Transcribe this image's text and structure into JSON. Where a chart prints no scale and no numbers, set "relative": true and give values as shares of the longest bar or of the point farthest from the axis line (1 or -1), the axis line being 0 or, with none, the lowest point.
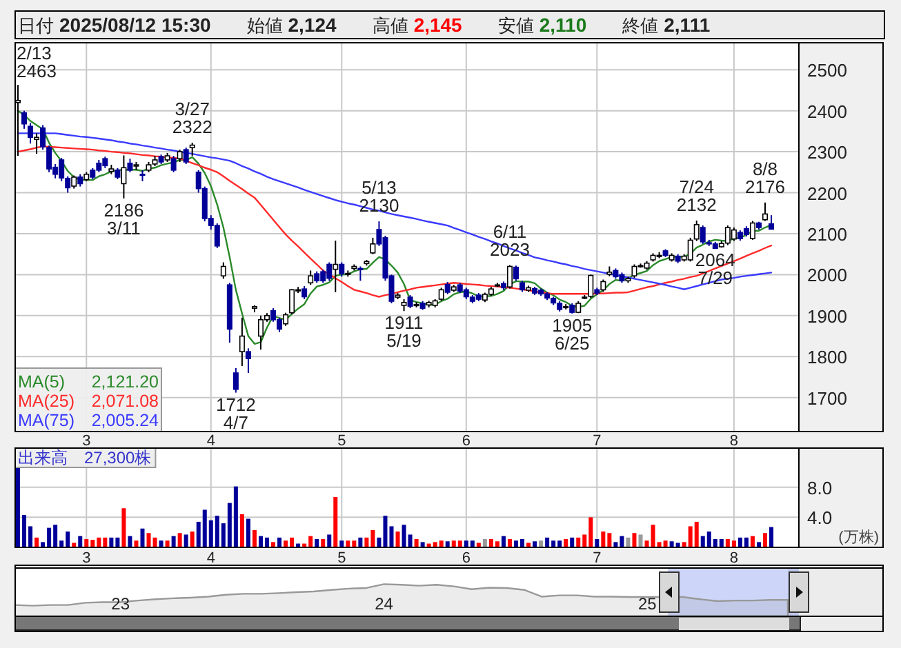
{
  "chart_data": [
    {
      "type": "candlestick",
      "annotations": [
        "日付",
        "2025/08/12 15:30",
        "始値",
        "2,124",
        "高値",
        "2,145",
        "安値",
        "2,110",
        "終値",
        "2,111",
        {
          "text": "2/13\n2463"
        },
        {
          "text": "2186\n3/11",
          "y": 2186
        },
        {
          "text": "3/27\n2322",
          "y": 2322
        },
        {
          "text": "1712\n4/7",
          "y": 1712
        },
        {
          "text": "5/13\n2130",
          "y": 2130
        },
        {
          "text": "1911\n5/19",
          "y": 1911
        },
        {
          "text": "6/11\n2023",
          "y": 2023
        },
        {
          "text": "1905\n6/25",
          "y": 1905
        },
        {
          "text": "7/24\n2132",
          "y": 2132
        },
        {
          "text": "2064\n7/29",
          "y": 2064
        },
        {
          "text": "8/8\n2176",
          "y": 2176
        }
      ],
      "categories": [
        null,
        null,
        null,
        null,
        null,
        null,
        null,
        null,
        null,
        null,
        null,
        "3",
        null,
        null,
        null,
        null,
        null,
        null,
        null,
        null,
        null,
        null,
        null,
        null,
        null,
        null,
        null,
        null,
        null,
        null,
        null,
        "4",
        null,
        null,
        null,
        null,
        null,
        null,
        null,
        null,
        null,
        null,
        null,
        null,
        null,
        null,
        null,
        null,
        null,
        null,
        null,
        null,
        "5",
        null,
        null,
        null,
        null,
        null,
        null,
        null,
        null,
        null,
        null,
        null,
        null,
        null,
        null,
        null,
        null,
        null,
        null,
        null,
        "6",
        null,
        null,
        null,
        null,
        null,
        null,
        null,
        null,
        null,
        null,
        null,
        null,
        null,
        null,
        null,
        null,
        null,
        null,
        null,
        null,
        "7",
        null,
        null,
        null,
        null,
        null,
        null,
        null,
        null,
        null,
        null,
        null,
        null,
        null,
        null,
        null,
        null,
        null,
        null,
        null,
        null,
        null,
        "8",
        null,
        null,
        null,
        null,
        null,
        null
      ],
      "ohlc": [
        [
          2420,
          2463,
          2290,
          2425
        ],
        [
          2395,
          2400,
          2356,
          2368
        ],
        [
          2362,
          2370,
          2320,
          2335
        ],
        [
          2330,
          2345,
          2295,
          2335
        ],
        [
          2358,
          2365,
          2305,
          2312
        ],
        [
          2310,
          2315,
          2250,
          2258
        ],
        [
          2262,
          2270,
          2235,
          2245
        ],
        [
          2280,
          2285,
          2228,
          2236
        ],
        [
          2235,
          2240,
          2200,
          2212
        ],
        [
          2216,
          2242,
          2210,
          2238
        ],
        [
          2238,
          2245,
          2215,
          2222
        ],
        [
          2232,
          2250,
          2228,
          2245
        ],
        [
          2255,
          2260,
          2233,
          2238
        ],
        [
          2272,
          2280,
          2250,
          2255
        ],
        [
          2283,
          2288,
          2260,
          2266
        ],
        [
          2252,
          2268,
          2245,
          2258
        ],
        [
          2255,
          2260,
          2233,
          2238
        ],
        [
          2222,
          2291,
          2186,
          2261
        ],
        [
          2272,
          2283,
          2250,
          2255
        ],
        [
          2265,
          2275,
          2255,
          2268
        ],
        [
          2245,
          2255,
          2228,
          2244
        ],
        [
          2255,
          2275,
          2250,
          2268
        ],
        [
          2270,
          2290,
          2265,
          2280
        ],
        [
          2288,
          2293,
          2270,
          2275
        ],
        [
          2280,
          2297,
          2275,
          2290
        ],
        [
          2283,
          2290,
          2250,
          2255
        ],
        [
          2283,
          2305,
          2275,
          2300
        ],
        [
          2305,
          2310,
          2270,
          2275
        ],
        [
          2310,
          2322,
          2290,
          2316
        ],
        [
          2250,
          2255,
          2200,
          2210
        ],
        [
          2210,
          2215,
          2130,
          2137
        ],
        [
          2137,
          2145,
          2110,
          2120
        ],
        [
          2120,
          2125,
          2065,
          2070
        ],
        [
          1997,
          2030,
          1990,
          2020
        ],
        [
          1975,
          1980,
          1834,
          1867
        ],
        [
          1760,
          1772,
          1712,
          1720
        ],
        [
          1812,
          1895,
          1777,
          1850
        ],
        [
          1812,
          1820,
          1760,
          1795
        ],
        [
          1918,
          1925,
          1908,
          1922
        ],
        [
          1850,
          1900,
          1817,
          1890
        ],
        [
          1890,
          1906,
          1885,
          1900
        ],
        [
          1912,
          1918,
          1885,
          1890
        ],
        [
          1890,
          1895,
          1860,
          1867
        ],
        [
          1880,
          1907,
          1875,
          1902
        ],
        [
          1907,
          1965,
          1903,
          1963
        ],
        [
          1963,
          1970,
          1955,
          1963
        ],
        [
          1965,
          1972,
          1940,
          1946
        ],
        [
          1980,
          2010,
          1975,
          1997
        ],
        [
          2002,
          2008,
          1980,
          1985
        ],
        [
          2007,
          2012,
          1980,
          1985
        ],
        [
          2025,
          2030,
          1985,
          1991
        ],
        [
          2013,
          2083,
          1957,
          2025
        ],
        [
          2025,
          2030,
          1995,
          2002
        ],
        [
          2002,
          2010,
          1995,
          2003
        ],
        [
          2015,
          2025,
          2010,
          2020
        ],
        [
          2015,
          2020,
          1985,
          2013
        ],
        [
          2027,
          2036,
          2022,
          2032
        ],
        [
          2053,
          2090,
          2050,
          2075
        ],
        [
          2110,
          2130,
          2070,
          2075
        ],
        [
          2090,
          2095,
          1985,
          1992
        ],
        [
          1997,
          2000,
          1930,
          1935
        ],
        [
          1945,
          1955,
          1940,
          1950
        ],
        [
          1925,
          1940,
          1911,
          1932
        ],
        [
          1945,
          1950,
          1918,
          1923
        ],
        [
          1927,
          1933,
          1920,
          1927
        ],
        [
          1930,
          1935,
          1914,
          1918
        ],
        [
          1926,
          1936,
          1920,
          1932
        ],
        [
          1925,
          1940,
          1920,
          1936
        ],
        [
          1940,
          1968,
          1936,
          1963
        ],
        [
          1976,
          1982,
          1952,
          1957
        ],
        [
          1962,
          1975,
          1958,
          1970
        ],
        [
          1975,
          1980,
          1955,
          1960
        ],
        [
          1963,
          1968,
          1940,
          1946
        ],
        [
          1945,
          1950,
          1930,
          1935
        ],
        [
          1950,
          1955,
          1935,
          1940
        ],
        [
          1938,
          1956,
          1933,
          1952
        ],
        [
          1952,
          1970,
          1948,
          1965
        ],
        [
          1975,
          1980,
          1970,
          1975
        ],
        [
          1978,
          1983,
          1962,
          1968
        ],
        [
          1970,
          2023,
          1966,
          2020
        ],
        [
          2018,
          2022,
          1985,
          1990
        ],
        [
          1980,
          1985,
          1958,
          1963
        ],
        [
          1962,
          1973,
          1958,
          1968
        ],
        [
          1966,
          1970,
          1950,
          1955
        ],
        [
          1962,
          1966,
          1948,
          1953
        ],
        [
          1953,
          1957,
          1938,
          1943
        ],
        [
          1942,
          1946,
          1926,
          1931
        ],
        [
          1930,
          1935,
          1910,
          1915
        ],
        [
          1922,
          1928,
          1915,
          1922
        ],
        [
          1925,
          1930,
          1905,
          1908
        ],
        [
          1908,
          1935,
          1906,
          1930
        ],
        [
          1945,
          1950,
          1940,
          1945
        ],
        [
          1947,
          2000,
          1943,
          1998
        ],
        [
          1963,
          1968,
          1950,
          1955
        ],
        [
          1963,
          1988,
          1958,
          1983
        ],
        [
          2001,
          2020,
          1996,
          2006
        ],
        [
          2010,
          2015,
          1990,
          1995
        ],
        [
          2000,
          2005,
          1980,
          1985
        ],
        [
          1985,
          1995,
          1980,
          1990
        ],
        [
          1997,
          2025,
          1992,
          2020
        ],
        [
          2022,
          2027,
          2017,
          2022
        ],
        [
          2016,
          2033,
          2012,
          2028
        ],
        [
          2036,
          2052,
          2032,
          2047
        ],
        [
          2047,
          2055,
          2040,
          2047
        ],
        [
          2058,
          2062,
          2043,
          2047
        ],
        [
          2036,
          2052,
          2032,
          2047
        ],
        [
          2045,
          2050,
          2028,
          2033
        ],
        [
          2036,
          2050,
          2032,
          2045
        ],
        [
          2036,
          2090,
          2032,
          2084
        ],
        [
          2087,
          2132,
          2082,
          2122
        ],
        [
          2115,
          2120,
          2075,
          2080
        ],
        [
          2078,
          2085,
          2070,
          2075
        ],
        [
          2075,
          2080,
          2064,
          2064
        ],
        [
          2068,
          2082,
          2066,
          2076
        ],
        [
          2077,
          2120,
          2072,
          2115
        ],
        [
          2087,
          2115,
          2082,
          2109
        ],
        [
          2103,
          2108,
          2083,
          2088
        ],
        [
          2112,
          2118,
          2093,
          2098
        ],
        [
          2088,
          2131,
          2085,
          2126
        ],
        [
          2126,
          2129,
          2110,
          2115
        ],
        [
          2134,
          2176,
          2131,
          2148
        ],
        [
          2124,
          2145,
          2110,
          2111
        ]
      ],
      "series": [
        {
          "type": "line",
          "name": "MA(5) 2,121.20",
          "color": "#2a8a2a",
          "values": [
            2400,
            2390,
            2375,
            2365,
            2355,
            2322,
            2297,
            2277,
            2253,
            2238,
            2231,
            2231,
            2231,
            2240,
            2245,
            2252,
            2255,
            2256,
            2256,
            2256,
            2253,
            2259,
            2261,
            2267,
            2271,
            2274,
            2280,
            2279,
            2287,
            2271,
            2248,
            2216,
            2171,
            2115,
            2043,
            1963,
            1905,
            1850,
            1831,
            1835,
            1871,
            1899,
            1894,
            1890,
            1904,
            1917,
            1928,
            1954,
            1971,
            1975,
            1981,
            1997,
            2000,
            2001,
            2008,
            2013,
            2014,
            2029,
            2043,
            2037,
            2022,
            2005,
            1977,
            1938,
            1933,
            1930,
            1926,
            1927,
            1935,
            1941,
            1952,
            1957,
            1959,
            1954,
            1947,
            1947,
            1948,
            1953,
            1960,
            1976,
            1984,
            1983,
            1983,
            1979,
            1966,
            1956,
            1950,
            1939,
            1933,
            1924,
            1921,
            1924,
            1941,
            1952,
            1962,
            1977,
            1987,
            1985,
            1992,
            1999,
            2004,
            2009,
            2023,
            2033,
            2038,
            2043,
            2044,
            2044,
            2051,
            2066,
            2073,
            2081,
            2085,
            2083,
            2082,
            2088,
            2090,
            2097,
            2107,
            2107,
            2115,
            2121.2
          ]
        },
        {
          "type": "line",
          "name": "MA(25) 2,071.08",
          "color": "#ff2a2a",
          "values": [
            2300,
            2303,
            2306,
            2310,
            2313,
            2312,
            2311,
            2310,
            2309,
            2308,
            2307,
            2306,
            2305,
            2303,
            2302,
            2300,
            2299,
            2297,
            2296,
            2294,
            2292,
            2291,
            2289,
            2288,
            2286,
            2285,
            2283,
            2278,
            2272,
            2267,
            2261,
            2256,
            2250,
            2240,
            2229,
            2219,
            2209,
            2198,
            2188,
            2170,
            2152,
            2134,
            2116,
            2098,
            2083,
            2069,
            2054,
            2039,
            2025,
            2010,
            2001,
            1991,
            1982,
            1972,
            1963,
            1959,
            1955,
            1950,
            1946,
            1950,
            1953,
            1957,
            1961,
            1964,
            1968,
            1970,
            1972,
            1974,
            1976,
            1978,
            1980,
            1979,
            1977,
            1976,
            1975,
            1973,
            1972,
            1971,
            1969,
            1968,
            1966,
            1964,
            1962,
            1959,
            1957,
            1955,
            1953,
            1953,
            1953,
            1953,
            1953,
            1953,
            1953,
            1954,
            1954,
            1955,
            1956,
            1956,
            1957,
            1961,
            1965,
            1969,
            1972,
            1976,
            1980,
            1983,
            1987,
            1990,
            1994,
            1997,
            2003,
            2009,
            2015,
            2021,
            2027,
            2033,
            2039,
            2046,
            2052,
            2058,
            2065,
            2071.1
          ]
        },
        {
          "type": "line",
          "name": "MA(75) 2,005.24",
          "color": "#3a3aff",
          "values": [
            2345,
            2345,
            2345,
            2345,
            2345,
            2345,
            2345,
            2343,
            2341,
            2339,
            2337,
            2336,
            2334,
            2332,
            2330,
            2328,
            2325,
            2323,
            2320,
            2318,
            2315,
            2313,
            2310,
            2308,
            2305,
            2303,
            2300,
            2297,
            2295,
            2292,
            2289,
            2286,
            2284,
            2281,
            2278,
            2272,
            2265,
            2259,
            2252,
            2246,
            2239,
            2233,
            2228,
            2223,
            2218,
            2213,
            2207,
            2202,
            2197,
            2192,
            2187,
            2182,
            2178,
            2174,
            2171,
            2167,
            2163,
            2159,
            2156,
            2152,
            2148,
            2145,
            2142,
            2139,
            2136,
            2132,
            2129,
            2126,
            2123,
            2120,
            2114,
            2109,
            2103,
            2098,
            2092,
            2087,
            2081,
            2076,
            2070,
            2064,
            2059,
            2053,
            2048,
            2042,
            2039,
            2035,
            2032,
            2028,
            2025,
            2021,
            2018,
            2014,
            2011,
            2008,
            2005,
            2002,
            1999,
            1996,
            1993,
            1990,
            1987,
            1984,
            1981,
            1978,
            1975,
            1971,
            1968,
            1964,
            1968,
            1972,
            1976,
            1980,
            1984,
            1988,
            1990,
            1992,
            1995,
            1997,
            1999,
            2001,
            2003,
            2005
          ]
        }
      ],
      "ylim": [
        1617,
        2566
      ],
      "yticks": [
        1700,
        1800,
        1900,
        2000,
        2100,
        2200,
        2300,
        2400,
        2500
      ],
      "grid": true,
      "legend": "bottom left"
    },
    {
      "type": "bar",
      "title": "出来高　27,300株",
      "ylabel": "(万株)",
      "categories": [
        null,
        null,
        null,
        null,
        null,
        null,
        null,
        null,
        null,
        null,
        null,
        "3",
        null,
        null,
        null,
        null,
        null,
        null,
        null,
        null,
        null,
        null,
        null,
        null,
        null,
        null,
        null,
        null,
        null,
        null,
        null,
        "4",
        null,
        null,
        null,
        null,
        null,
        null,
        null,
        null,
        null,
        null,
        null,
        null,
        null,
        null,
        null,
        null,
        null,
        null,
        null,
        null,
        "5",
        null,
        null,
        null,
        null,
        null,
        null,
        null,
        null,
        null,
        null,
        null,
        null,
        null,
        null,
        null,
        null,
        null,
        null,
        null,
        "6",
        null,
        null,
        null,
        null,
        null,
        null,
        null,
        null,
        null,
        null,
        null,
        null,
        null,
        null,
        null,
        null,
        null,
        null,
        null,
        null,
        "7",
        null,
        null,
        null,
        null,
        null,
        null,
        null,
        null,
        null,
        null,
        null,
        null,
        null,
        null,
        null,
        null,
        null,
        null,
        null,
        null,
        null,
        "8",
        null,
        null,
        null,
        null,
        null,
        null
      ],
      "values": [
        10.6,
        4.3,
        2.8,
        1.3,
        0.7,
        2.6,
        3.0,
        0.9,
        2.1,
        0.6,
        1.5,
        1.1,
        1.0,
        1.3,
        1.3,
        1.3,
        1.3,
        5.2,
        1.5,
        0.9,
        2.5,
        1.9,
        1.3,
        0.9,
        0.9,
        1.5,
        1.9,
        1.7,
        2.1,
        3.4,
        5.0,
        3.6,
        4.2,
        3.2,
        5.9,
        8.1,
        4.4,
        3.8,
        2.3,
        1.5,
        1.3,
        0.7,
        1.3,
        0.9,
        1.3,
        0.5,
        0.5,
        1.5,
        1.1,
        1.1,
        1.7,
        6.7,
        0.9,
        0.9,
        0.9,
        1.3,
        1.3,
        2.3,
        1.3,
        4.2,
        2.8,
        2.1,
        3.0,
        1.7,
        1.1,
        0.7,
        0.5,
        0.7,
        0.9,
        0.8,
        0.9,
        0.9,
        0.9,
        0.9,
        0.6,
        1.1,
        1.1,
        0.8,
        1.5,
        1.1,
        0.9,
        1.1,
        0.6,
        0.8,
        0.9,
        1.3,
        0.9,
        0.9,
        1.1,
        1.3,
        1.3,
        1.7,
        4.0,
        1.1,
        2.1,
        1.9,
        0.7,
        1.5,
        1.3,
        1.9,
        1.7,
        0.9,
        3.0,
        0.7,
        0.9,
        0.8,
        0.6,
        0.7,
        2.8,
        3.4,
        1.5,
        2.1,
        1.1,
        1.1,
        1.1,
        0.9,
        1.3,
        1.3,
        1.5,
        0.7,
        1.9,
        2.7
      ],
      "colors": [
        "#000099",
        "#000099",
        "#000099",
        "#ff0000",
        "#000099",
        "#000099",
        "#000099",
        "#000099",
        "#000099",
        "#ff0000",
        "#000099",
        "#ff0000",
        "#ff0000",
        "#ff0000",
        "#ff0000",
        "#000099",
        "#000099",
        "#ff0000",
        "#000099",
        "#ff0000",
        "#000099",
        "#ff0000",
        "#ff0000",
        "#000099",
        "#ff0000",
        "#000099",
        "#ff0000",
        "#000099",
        "#ff0000",
        "#000099",
        "#000099",
        "#000099",
        "#000099",
        "#000099",
        "#000099",
        "#000099",
        "#ff0000",
        "#000099",
        "#ff0000",
        "#000099",
        "#000099",
        "#ff0000",
        "#000099",
        "#ff0000",
        "#ff0000",
        "#000099",
        "#ff0000",
        "#ff0000",
        "#000099",
        "#ff0000",
        "#000099",
        "#ff0000",
        "#000099",
        "#ff0000",
        "#ff0000",
        "#000099",
        "#ff0000",
        "#ff0000",
        "#000099",
        "#000099",
        "#000099",
        "#ff0000",
        "#000099",
        "#000099",
        "#ff0000",
        "#000099",
        "#ff0000",
        "#ff0000",
        "#ff0000",
        "#000099",
        "#ff0000",
        "#ff0000",
        "#000099",
        "#000099",
        "#ff0000",
        "#999999",
        "#ff0000",
        "#ff0000",
        "#000099",
        "#ff0000",
        "#000099",
        "#000099",
        "#ff0000",
        "#000099",
        "#999999",
        "#000099",
        "#000099",
        "#000099",
        "#ff0000",
        "#000099",
        "#ff0000",
        "#ff0000",
        "#ff0000",
        "#000099",
        "#ff0000",
        "#ff0000",
        "#000099",
        "#000099",
        "#999999",
        "#ff0000",
        "#999999",
        "#ff0000",
        "#ff0000",
        "#ff0000",
        "#ff0000",
        "#000099",
        "#000099",
        "#ff0000",
        "#ff0000",
        "#ff0000",
        "#000099",
        "#000099",
        "#000099",
        "#000099",
        "#ff0000",
        "#ff0000",
        "#000099",
        "#000099",
        "#ff0000",
        "#000099",
        "#ff0000",
        "#000099"
      ],
      "ylim": [
        0,
        13.2
      ],
      "yticks": [
        {
          "value": 4,
          "label": "4.0"
        },
        {
          "value": 8,
          "label": "8.0"
        }
      ],
      "grid": true
    },
    {
      "type": "area",
      "relative": true,
      "color": "#999999",
      "categories": [
        null,
        null,
        null,
        null,
        null,
        null,
        "23",
        null,
        null,
        null,
        null,
        null,
        null,
        null,
        null,
        null,
        null,
        null,
        null,
        null,
        null,
        "24",
        null,
        null,
        null,
        null,
        null,
        null,
        null,
        null,
        null,
        null,
        null,
        null,
        null,
        null,
        "25",
        null,
        null,
        null,
        null,
        null,
        null,
        null,
        null
      ],
      "values": [
        0.35,
        0.33,
        0.35,
        0.35,
        0.42,
        0.44,
        0.44,
        0.49,
        0.53,
        0.56,
        0.58,
        0.61,
        0.67,
        0.7,
        0.7,
        0.72,
        0.75,
        0.77,
        0.82,
        0.86,
        0.88,
        1,
        0.98,
        0.95,
        0.98,
        0.93,
        0.84,
        0.89,
        0.88,
        0.82,
        0.61,
        0.65,
        0.65,
        0.61,
        0.61,
        0.6,
        0.6,
        null,
        0.6,
        0.53,
        0.47,
        0.49,
        0.49,
        0.51,
        0.51
      ]
    }
  ]
}
